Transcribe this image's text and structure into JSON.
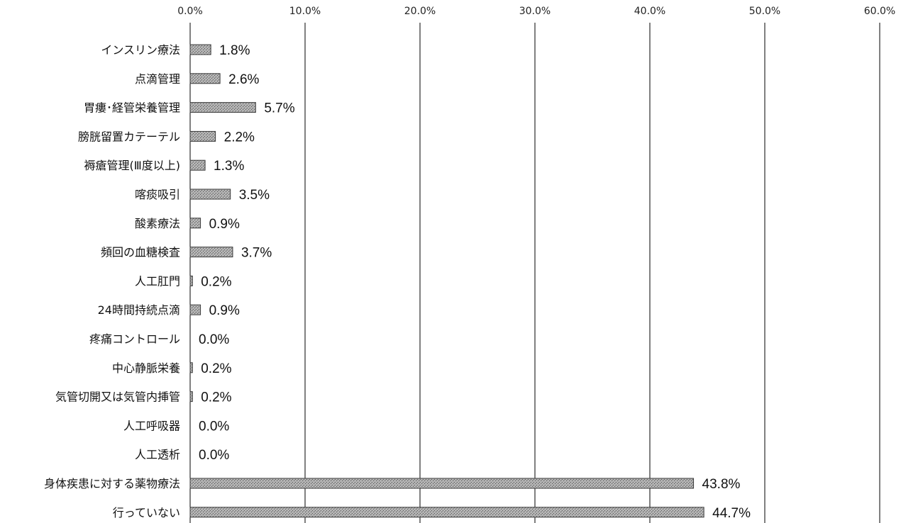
{
  "chart_data": {
    "type": "bar",
    "orientation": "horizontal",
    "title": "",
    "xlabel": "",
    "ylabel": "",
    "xlim": [
      0,
      60
    ],
    "ticks": [
      "0.0%",
      "10.0%",
      "20.0%",
      "30.0%",
      "40.0%",
      "50.0%",
      "60.0%"
    ],
    "tick_values": [
      0,
      10,
      20,
      30,
      40,
      50,
      60
    ],
    "grid": true,
    "axis_position": "top",
    "legend": "none",
    "bar_color": "#9a9a9a",
    "bar_edge_color": "#3a3a3a",
    "categories": [
      "インスリン療法",
      "点滴管理",
      "胃瘻･経管栄養管理",
      "膀胱留置カテーテル",
      "褥瘡管理(Ⅲ度以上)",
      "喀痰吸引",
      "酸素療法",
      "頻回の血糖検査",
      "人工肛門",
      "24時間持続点滴",
      "疼痛コントロール",
      "中心静脈栄養",
      "気管切開又は気管内挿管",
      "人工呼吸器",
      "人工透析",
      "身体疾患に対する薬物療法",
      "行っていない"
    ],
    "values": [
      1.8,
      2.6,
      5.7,
      2.2,
      1.3,
      3.5,
      0.9,
      3.7,
      0.2,
      0.9,
      0.0,
      0.2,
      0.2,
      0.0,
      0.0,
      43.8,
      44.7
    ],
    "value_labels": [
      "1.8%",
      "2.6%",
      "5.7%",
      "2.2%",
      "1.3%",
      "3.5%",
      "0.9%",
      "3.7%",
      "0.2%",
      "0.9%",
      "0.0%",
      "0.2%",
      "0.2%",
      "0.0%",
      "0.0%",
      "43.8%",
      "44.7%"
    ]
  }
}
